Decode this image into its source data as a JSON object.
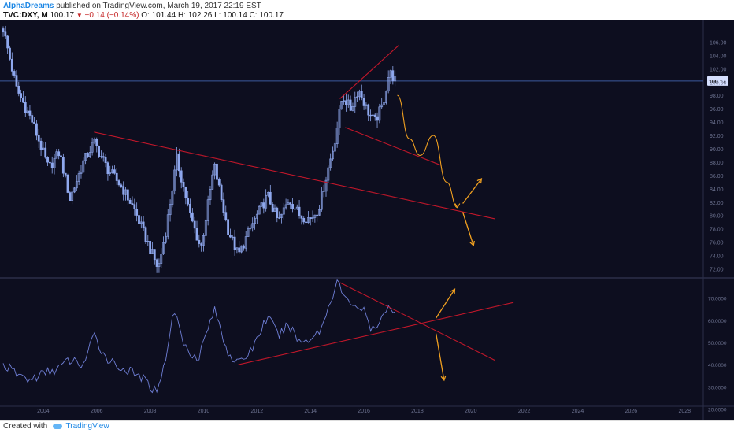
{
  "header": {
    "author": "AlphaDreams",
    "published_text": "published on TradingView.com, March 19, 2017 22:19 EST",
    "symbol": "TVC:DXY, M",
    "last": "100.17",
    "change": "−0.14 (−0.14%)",
    "ohlc": "O: 101.44  H: 102.26  L: 100.14  C: 100.17"
  },
  "footer": {
    "created_with": "Created with",
    "brand": "TradingView"
  },
  "colors": {
    "background": "#0d0e1f",
    "candle": "#8fa8ee",
    "price_line": "#3d5a9e",
    "trendline": "#c0172a",
    "projection": "#f0a020",
    "indicator": "#6f7fd6"
  },
  "chart_data": [
    {
      "type": "candlestick",
      "series_desc": "monthly candles",
      "ylim": [
        71,
        109
      ],
      "y_ticks": [
        "106.00",
        "104.00",
        "102.00",
        "100.00",
        "98.00",
        "96.00",
        "94.00",
        "92.00",
        "90.00",
        "88.00",
        "86.00",
        "84.00",
        "82.00",
        "80.00",
        "78.00",
        "76.00",
        "74.00",
        "72.00"
      ],
      "last_price_label": "100.17",
      "last_price": 100.17,
      "anchors": [
        {
          "x": 2002.5,
          "y": 108
        },
        {
          "x": 2003.0,
          "y": 99
        },
        {
          "x": 2003.6,
          "y": 94
        },
        {
          "x": 2004.2,
          "y": 87
        },
        {
          "x": 2004.6,
          "y": 89.5
        },
        {
          "x": 2005.0,
          "y": 82.5
        },
        {
          "x": 2005.5,
          "y": 88
        },
        {
          "x": 2005.9,
          "y": 91
        },
        {
          "x": 2006.4,
          "y": 87
        },
        {
          "x": 2006.9,
          "y": 84.5
        },
        {
          "x": 2007.4,
          "y": 81
        },
        {
          "x": 2007.9,
          "y": 76
        },
        {
          "x": 2008.3,
          "y": 72
        },
        {
          "x": 2008.6,
          "y": 78
        },
        {
          "x": 2009.0,
          "y": 88.5
        },
        {
          "x": 2009.5,
          "y": 80
        },
        {
          "x": 2009.9,
          "y": 75
        },
        {
          "x": 2010.4,
          "y": 87.5
        },
        {
          "x": 2010.9,
          "y": 78
        },
        {
          "x": 2011.3,
          "y": 74
        },
        {
          "x": 2011.8,
          "y": 78.5
        },
        {
          "x": 2012.4,
          "y": 83
        },
        {
          "x": 2012.8,
          "y": 79
        },
        {
          "x": 2013.2,
          "y": 82.5
        },
        {
          "x": 2013.6,
          "y": 80
        },
        {
          "x": 2014.0,
          "y": 79.5
        },
        {
          "x": 2014.3,
          "y": 81
        },
        {
          "x": 2014.6,
          "y": 86
        },
        {
          "x": 2014.9,
          "y": 91
        },
        {
          "x": 2015.2,
          "y": 98
        },
        {
          "x": 2015.5,
          "y": 96
        },
        {
          "x": 2015.8,
          "y": 99
        },
        {
          "x": 2016.1,
          "y": 96
        },
        {
          "x": 2016.4,
          "y": 94
        },
        {
          "x": 2016.7,
          "y": 96.5
        },
        {
          "x": 2016.95,
          "y": 101.5
        },
        {
          "x": 2017.2,
          "y": 100.17
        }
      ],
      "trendlines": [
        {
          "x1": 2005.9,
          "y1": 92.5,
          "x2": 2020.9,
          "y2": 79.5
        },
        {
          "x1": 2015.1,
          "y1": 97.5,
          "x2": 2017.3,
          "y2": 105.5
        },
        {
          "x1": 2015.3,
          "y1": 93.2,
          "x2": 2018.9,
          "y2": 87.5
        }
      ],
      "projection_curve": [
        {
          "x": 2017.25,
          "y": 98
        },
        {
          "x": 2017.7,
          "y": 91.5
        },
        {
          "x": 2018.1,
          "y": 89
        },
        {
          "x": 2018.6,
          "y": 92
        },
        {
          "x": 2019.1,
          "y": 85
        },
        {
          "x": 2019.5,
          "y": 81.2
        }
      ],
      "projection_arrows": [
        {
          "x1": 2019.7,
          "y1": 81.8,
          "x2": 2020.4,
          "y2": 85.5
        },
        {
          "x1": 2019.7,
          "y1": 80.5,
          "x2": 2020.1,
          "y2": 75.5
        }
      ]
    },
    {
      "type": "line",
      "series_desc": "oscillator",
      "ylim": [
        22,
        78
      ],
      "y_ticks": [
        "70.0000",
        "60.0000",
        "50.0000",
        "40.0000",
        "30.0000",
        "20.0000"
      ],
      "anchors": [
        {
          "x": 2002.5,
          "y": 40
        },
        {
          "x": 2003.0,
          "y": 36
        },
        {
          "x": 2003.5,
          "y": 33
        },
        {
          "x": 2004.0,
          "y": 36
        },
        {
          "x": 2004.5,
          "y": 38
        },
        {
          "x": 2005.0,
          "y": 42
        },
        {
          "x": 2005.5,
          "y": 40
        },
        {
          "x": 2005.9,
          "y": 53
        },
        {
          "x": 2006.3,
          "y": 44
        },
        {
          "x": 2006.7,
          "y": 40
        },
        {
          "x": 2007.2,
          "y": 37
        },
        {
          "x": 2007.7,
          "y": 34
        },
        {
          "x": 2008.2,
          "y": 28
        },
        {
          "x": 2008.5,
          "y": 38
        },
        {
          "x": 2008.9,
          "y": 65
        },
        {
          "x": 2009.3,
          "y": 48
        },
        {
          "x": 2009.8,
          "y": 43
        },
        {
          "x": 2010.4,
          "y": 65
        },
        {
          "x": 2010.9,
          "y": 46
        },
        {
          "x": 2011.3,
          "y": 40
        },
        {
          "x": 2011.8,
          "y": 47
        },
        {
          "x": 2012.4,
          "y": 62
        },
        {
          "x": 2012.8,
          "y": 53
        },
        {
          "x": 2013.2,
          "y": 58
        },
        {
          "x": 2013.6,
          "y": 50
        },
        {
          "x": 2014.0,
          "y": 52
        },
        {
          "x": 2014.4,
          "y": 56
        },
        {
          "x": 2014.7,
          "y": 67
        },
        {
          "x": 2015.0,
          "y": 78
        },
        {
          "x": 2015.3,
          "y": 69
        },
        {
          "x": 2015.7,
          "y": 67
        },
        {
          "x": 2016.0,
          "y": 64
        },
        {
          "x": 2016.3,
          "y": 55
        },
        {
          "x": 2016.6,
          "y": 58
        },
        {
          "x": 2016.9,
          "y": 68
        },
        {
          "x": 2017.2,
          "y": 62
        }
      ],
      "trendlines": [
        {
          "x1": 2011.3,
          "y1": 40,
          "x2": 2021.6,
          "y2": 68
        },
        {
          "x1": 2015.1,
          "y1": 77,
          "x2": 2020.9,
          "y2": 42
        }
      ],
      "projection_arrows": [
        {
          "x1": 2018.7,
          "y1": 61,
          "x2": 2019.4,
          "y2": 74
        },
        {
          "x1": 2018.7,
          "y1": 54,
          "x2": 2019.0,
          "y2": 33
        }
      ]
    }
  ],
  "time_axis": {
    "ticks": [
      {
        "x": 2004,
        "label": "2004"
      },
      {
        "x": 2006,
        "label": "2006"
      },
      {
        "x": 2008,
        "label": "2008"
      },
      {
        "x": 2010,
        "label": "2010"
      },
      {
        "x": 2012,
        "label": "2012"
      },
      {
        "x": 2014,
        "label": "2014"
      },
      {
        "x": 2016,
        "label": "2016"
      },
      {
        "x": 2018,
        "label": "2018"
      },
      {
        "x": 2020,
        "label": "2020"
      },
      {
        "x": 2022,
        "label": "2022"
      },
      {
        "x": 2024,
        "label": "2024"
      },
      {
        "x": 2026,
        "label": "2026"
      },
      {
        "x": 2028,
        "label": "2028"
      }
    ],
    "xlim": [
      2002.5,
      2028.7
    ]
  }
}
